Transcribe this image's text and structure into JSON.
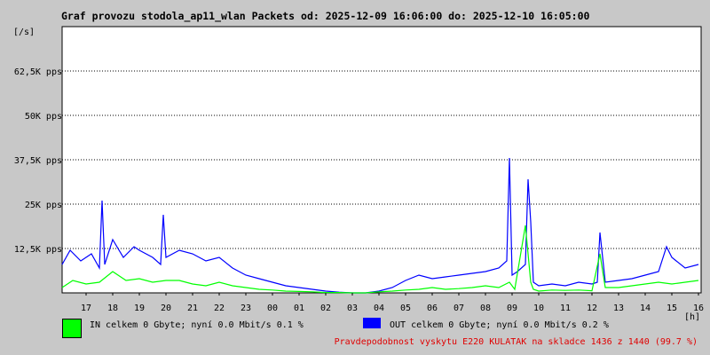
{
  "chart_data": {
    "type": "line",
    "title": "Graf provozu stodola_ap11_wlan Packets od: 2025-12-09 16:06:00 do: 2025-12-10 16:05:00",
    "ylabel": "[/s]",
    "xlabel": "[h]",
    "ylim": [
      0,
      75000
    ],
    "y_ticks": [
      {
        "value": 12500,
        "label": "12,5K pps"
      },
      {
        "value": 25000,
        "label": "25K pps"
      },
      {
        "value": 37500,
        "label": "37,5K pps"
      },
      {
        "value": 50000,
        "label": "50K pps"
      },
      {
        "value": 62500,
        "label": "62,5K pps"
      }
    ],
    "x_ticks": [
      "17",
      "18",
      "19",
      "20",
      "21",
      "22",
      "23",
      "00",
      "01",
      "02",
      "03",
      "04",
      "05",
      "06",
      "07",
      "08",
      "09",
      "10",
      "11",
      "12",
      "13",
      "14",
      "15",
      "16"
    ],
    "xlim": [
      16.1,
      40.1
    ],
    "grid": "horizontal",
    "series": [
      {
        "name": "IN",
        "color": "#00ff00",
        "x": [
          16.1,
          16.5,
          17.0,
          17.5,
          18.0,
          18.5,
          19.0,
          19.5,
          20.0,
          20.5,
          21.0,
          21.5,
          22.0,
          22.5,
          23.0,
          23.5,
          24.0,
          24.5,
          25.0,
          25.5,
          26.0,
          26.5,
          27.0,
          27.5,
          28.0,
          28.5,
          29.0,
          29.5,
          30.0,
          30.5,
          31.0,
          31.5,
          32.0,
          32.5,
          32.9,
          33.0,
          33.1,
          33.5,
          33.7,
          33.8,
          34.0,
          34.5,
          35.0,
          35.5,
          36.0,
          36.3,
          36.5,
          37.0,
          37.5,
          38.0,
          38.5,
          39.0,
          39.5,
          40.0
        ],
        "y": [
          1500,
          3500,
          2500,
          3000,
          6000,
          3500,
          4000,
          3000,
          3500,
          3500,
          2500,
          2000,
          3000,
          2000,
          1500,
          1000,
          800,
          500,
          400,
          300,
          100,
          100,
          0,
          0,
          300,
          500,
          800,
          1000,
          1500,
          1000,
          1200,
          1500,
          2000,
          1500,
          3000,
          2000,
          1000,
          19000,
          3000,
          1000,
          500,
          800,
          700,
          800,
          600,
          11000,
          1500,
          1500,
          2000,
          2500,
          3000,
          2500,
          3000,
          3500
        ]
      },
      {
        "name": "OUT",
        "color": "#0000ff",
        "x": [
          16.1,
          16.4,
          16.8,
          17.2,
          17.5,
          17.6,
          17.7,
          18.0,
          18.4,
          18.8,
          19.0,
          19.5,
          19.8,
          19.9,
          20.0,
          20.5,
          21.0,
          21.5,
          22.0,
          22.5,
          23.0,
          23.5,
          24.0,
          24.5,
          25.0,
          25.5,
          26.0,
          26.5,
          27.0,
          27.5,
          28.0,
          28.5,
          29.0,
          29.5,
          30.0,
          30.5,
          31.0,
          31.5,
          32.0,
          32.5,
          32.8,
          32.9,
          33.0,
          33.2,
          33.5,
          33.6,
          33.7,
          33.8,
          34.0,
          34.5,
          35.0,
          35.5,
          36.0,
          36.2,
          36.3,
          36.5,
          37.0,
          37.5,
          38.0,
          38.5,
          38.8,
          39.0,
          39.5,
          40.0
        ],
        "y": [
          8000,
          12000,
          9000,
          11000,
          7000,
          26000,
          8000,
          15000,
          10000,
          13000,
          12000,
          10000,
          8000,
          22000,
          10000,
          12000,
          11000,
          9000,
          10000,
          7000,
          5000,
          4000,
          3000,
          2000,
          1500,
          1000,
          500,
          200,
          0,
          0,
          500,
          1500,
          3500,
          5000,
          4000,
          4500,
          5000,
          5500,
          6000,
          7000,
          9000,
          38000,
          5000,
          6000,
          8000,
          32000,
          20000,
          3000,
          2000,
          2500,
          2000,
          3000,
          2500,
          3000,
          17000,
          3000,
          3500,
          4000,
          5000,
          6000,
          13000,
          10000,
          7000,
          8000
        ]
      }
    ]
  },
  "legend": {
    "in_text": "IN celkem 0 Gbyte; nyní    0.0 Mbit/s 0.1 %",
    "out_text": "OUT celkem 0 Gbyte; nyní   0.0 Mbit/s 0.2 %",
    "in_color": "#00ff00",
    "out_color": "#0000ff"
  },
  "footnote": "Pravdepodobnost vyskytu E220 KULATAK na skladce 1436 z 1440 (99.7 %)"
}
